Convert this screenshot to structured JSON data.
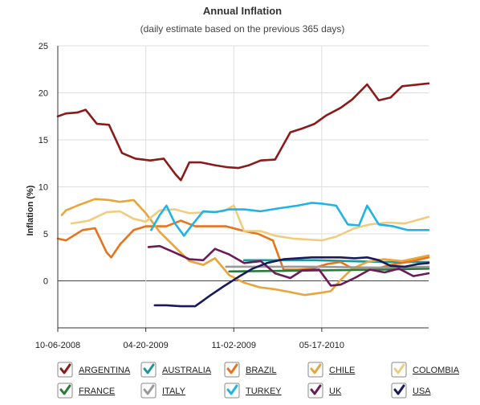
{
  "chart_data": {
    "type": "line",
    "title": "Annual Inflation",
    "subtitle": "(daily estimate based on the previous 365 days)",
    "xlabel": "",
    "ylabel": "Inflation (%)",
    "xlim": [
      "2008-10-06",
      "2011-01-10"
    ],
    "ylim": [
      -5,
      25
    ],
    "yticks": [
      0,
      5,
      10,
      15,
      20,
      25
    ],
    "xticks": [
      {
        "date": "2008-10-06",
        "label": "10-06-2008"
      },
      {
        "date": "2009-04-20",
        "label": "04-20-2009"
      },
      {
        "date": "2009-11-02",
        "label": "11-02-2009"
      },
      {
        "date": "2010-05-17",
        "label": "05-17-2010"
      }
    ],
    "grid": true,
    "legend_position": "bottom",
    "series": [
      {
        "name": "ARGENTINA",
        "color": "#8b1a1a",
        "points": [
          [
            "2008-10-06",
            17.5
          ],
          [
            "2008-10-24",
            17.8
          ],
          [
            "2008-11-18",
            17.9
          ],
          [
            "2008-12-07",
            18.2
          ],
          [
            "2009-01-01",
            16.7
          ],
          [
            "2009-01-28",
            16.6
          ],
          [
            "2009-02-26",
            13.6
          ],
          [
            "2009-03-28",
            13.0
          ],
          [
            "2009-04-30",
            12.8
          ],
          [
            "2009-05-30",
            13.0
          ],
          [
            "2009-06-24",
            11.4
          ],
          [
            "2009-07-07",
            10.7
          ],
          [
            "2009-07-26",
            12.6
          ],
          [
            "2009-08-21",
            12.6
          ],
          [
            "2009-09-21",
            12.3
          ],
          [
            "2009-10-16",
            12.1
          ],
          [
            "2009-11-12",
            12.0
          ],
          [
            "2009-12-06",
            12.3
          ],
          [
            "2010-01-01",
            12.8
          ],
          [
            "2010-02-02",
            12.9
          ],
          [
            "2010-03-08",
            15.8
          ],
          [
            "2010-04-03",
            16.2
          ],
          [
            "2010-05-01",
            16.7
          ],
          [
            "2010-05-27",
            17.6
          ],
          [
            "2010-06-28",
            18.4
          ],
          [
            "2010-07-24",
            19.3
          ],
          [
            "2010-08-26",
            20.9
          ],
          [
            "2010-09-21",
            19.2
          ],
          [
            "2010-10-17",
            19.5
          ],
          [
            "2010-11-12",
            20.7
          ],
          [
            "2011-01-10",
            21.0
          ]
        ]
      },
      {
        "name": "AUSTRALIA",
        "color": "#1a9a9a",
        "points": [
          [
            "2009-11-25",
            2.2
          ],
          [
            "2010-05-01",
            2.2
          ],
          [
            "2010-10-01",
            2.0
          ],
          [
            "2011-01-10",
            2.0
          ]
        ]
      },
      {
        "name": "BRAZIL",
        "color": "#e8731a",
        "points": [
          [
            "2008-10-06",
            4.5
          ],
          [
            "2008-10-24",
            4.3
          ],
          [
            "2008-11-30",
            5.4
          ],
          [
            "2008-12-28",
            5.6
          ],
          [
            "2009-01-23",
            3.0
          ],
          [
            "2009-02-02",
            2.5
          ],
          [
            "2009-02-22",
            3.9
          ],
          [
            "2009-03-24",
            5.4
          ],
          [
            "2009-04-20",
            5.8
          ],
          [
            "2009-06-05",
            5.8
          ],
          [
            "2009-07-07",
            6.4
          ],
          [
            "2009-08-08",
            5.8
          ],
          [
            "2009-10-16",
            5.8
          ],
          [
            "2009-11-25",
            5.3
          ],
          [
            "2009-12-26",
            5.0
          ],
          [
            "2010-01-28",
            4.3
          ],
          [
            "2010-02-21",
            1.2
          ],
          [
            "2010-03-24",
            1.2
          ],
          [
            "2010-04-25",
            1.3
          ],
          [
            "2010-05-30",
            1.8
          ],
          [
            "2010-06-28",
            2.0
          ],
          [
            "2010-07-29",
            1.2
          ],
          [
            "2010-09-09",
            1.2
          ],
          [
            "2010-10-17",
            1.7
          ],
          [
            "2010-11-24",
            2.0
          ],
          [
            "2011-01-10",
            2.5
          ]
        ]
      },
      {
        "name": "CHILE",
        "color": "#e9a53a",
        "points": [
          [
            "2008-10-15",
            7.0
          ],
          [
            "2008-10-24",
            7.5
          ],
          [
            "2008-11-24",
            8.1
          ],
          [
            "2008-12-28",
            8.7
          ],
          [
            "2009-01-28",
            8.6
          ],
          [
            "2009-02-21",
            8.4
          ],
          [
            "2009-03-24",
            8.6
          ],
          [
            "2009-04-20",
            7.2
          ],
          [
            "2009-05-21",
            5.2
          ],
          [
            "2009-06-24",
            3.6
          ],
          [
            "2009-07-26",
            2.1
          ],
          [
            "2009-08-26",
            1.7
          ],
          [
            "2009-09-21",
            2.4
          ],
          [
            "2009-10-23",
            0.6
          ],
          [
            "2009-11-25",
            -0.2
          ],
          [
            "2009-12-31",
            -0.7
          ],
          [
            "2010-02-02",
            -0.9
          ],
          [
            "2010-03-08",
            -1.2
          ],
          [
            "2010-04-09",
            -1.5
          ],
          [
            "2010-05-11",
            -1.3
          ],
          [
            "2010-06-06",
            -1.1
          ],
          [
            "2010-06-28",
            0.1
          ],
          [
            "2010-07-24",
            1.3
          ],
          [
            "2010-08-26",
            2.0
          ],
          [
            "2010-10-01",
            2.3
          ],
          [
            "2010-11-12",
            2.1
          ],
          [
            "2011-01-10",
            2.7
          ]
        ]
      },
      {
        "name": "COLOMBIA",
        "color": "#f0cd7e",
        "points": [
          [
            "2008-11-05",
            6.1
          ],
          [
            "2008-12-14",
            6.4
          ],
          [
            "2009-01-23",
            7.3
          ],
          [
            "2009-02-21",
            7.4
          ],
          [
            "2009-03-24",
            6.6
          ],
          [
            "2009-04-20",
            6.3
          ],
          [
            "2009-05-21",
            7.5
          ],
          [
            "2009-06-24",
            7.6
          ],
          [
            "2009-07-26",
            7.2
          ],
          [
            "2009-09-04",
            7.3
          ],
          [
            "2009-10-10",
            7.4
          ],
          [
            "2009-11-02",
            8.0
          ],
          [
            "2009-11-25",
            5.3
          ],
          [
            "2009-12-31",
            5.3
          ],
          [
            "2010-02-02",
            4.8
          ],
          [
            "2010-03-14",
            4.5
          ],
          [
            "2010-04-15",
            4.4
          ],
          [
            "2010-05-17",
            4.3
          ],
          [
            "2010-06-18",
            4.7
          ],
          [
            "2010-07-29",
            5.6
          ],
          [
            "2010-09-01",
            6.0
          ],
          [
            "2010-10-10",
            6.2
          ],
          [
            "2010-11-18",
            6.1
          ],
          [
            "2011-01-10",
            6.8
          ]
        ]
      },
      {
        "name": "FRANCE",
        "color": "#2a7a3a",
        "points": [
          [
            "2009-10-23",
            1.0
          ],
          [
            "2010-05-01",
            1.1
          ],
          [
            "2010-10-01",
            1.2
          ],
          [
            "2011-01-10",
            1.3
          ]
        ]
      },
      {
        "name": "ITALY",
        "color": "#999999",
        "points": [
          [
            "2009-10-16",
            1.5
          ],
          [
            "2010-04-21",
            1.5
          ],
          [
            "2010-10-01",
            1.4
          ],
          [
            "2011-01-10",
            1.5
          ]
        ]
      },
      {
        "name": "TURKEY",
        "color": "#1fb3e8",
        "points": [
          [
            "2009-05-02",
            5.4
          ],
          [
            "2009-05-21",
            7.0
          ],
          [
            "2009-06-05",
            8.0
          ],
          [
            "2009-06-24",
            6.1
          ],
          [
            "2009-07-14",
            4.8
          ],
          [
            "2009-08-02",
            6.0
          ],
          [
            "2009-08-26",
            7.4
          ],
          [
            "2009-09-21",
            7.3
          ],
          [
            "2009-10-23",
            7.6
          ],
          [
            "2009-11-25",
            7.6
          ],
          [
            "2010-01-01",
            7.4
          ],
          [
            "2010-02-09",
            7.7
          ],
          [
            "2010-03-24",
            8.0
          ],
          [
            "2010-04-25",
            8.3
          ],
          [
            "2010-05-20",
            8.2
          ],
          [
            "2010-06-18",
            8.0
          ],
          [
            "2010-07-14",
            6.0
          ],
          [
            "2010-08-08",
            5.9
          ],
          [
            "2010-08-26",
            8.0
          ],
          [
            "2010-09-21",
            6.0
          ],
          [
            "2010-10-23",
            5.8
          ],
          [
            "2010-11-24",
            5.4
          ],
          [
            "2011-01-10",
            5.4
          ]
        ]
      },
      {
        "name": "UK",
        "color": "#6b1a5a",
        "points": [
          [
            "2009-04-26",
            3.6
          ],
          [
            "2009-05-21",
            3.7
          ],
          [
            "2009-06-24",
            3.0
          ],
          [
            "2009-07-26",
            2.3
          ],
          [
            "2009-08-26",
            2.2
          ],
          [
            "2009-09-21",
            3.4
          ],
          [
            "2009-10-23",
            2.8
          ],
          [
            "2009-11-25",
            1.9
          ],
          [
            "2010-01-01",
            2.1
          ],
          [
            "2010-02-02",
            0.8
          ],
          [
            "2010-03-08",
            0.3
          ],
          [
            "2010-04-03",
            1.1
          ],
          [
            "2010-05-11",
            1.2
          ],
          [
            "2010-06-06",
            -0.5
          ],
          [
            "2010-06-28",
            -0.4
          ],
          [
            "2010-07-29",
            0.3
          ],
          [
            "2010-09-01",
            1.2
          ],
          [
            "2010-10-04",
            0.9
          ],
          [
            "2010-11-05",
            1.3
          ],
          [
            "2010-12-07",
            0.5
          ],
          [
            "2011-01-10",
            0.8
          ]
        ]
      },
      {
        "name": "USA",
        "color": "#1a1a5a",
        "points": [
          [
            "2009-05-10",
            -2.6
          ],
          [
            "2009-06-05",
            -2.6
          ],
          [
            "2009-07-07",
            -2.7
          ],
          [
            "2009-08-08",
            -2.7
          ],
          [
            "2009-09-09",
            -1.6
          ],
          [
            "2009-10-10",
            -0.6
          ],
          [
            "2009-11-12",
            0.4
          ],
          [
            "2009-12-14",
            1.3
          ],
          [
            "2010-01-15",
            1.9
          ],
          [
            "2010-02-21",
            2.3
          ],
          [
            "2010-03-24",
            2.4
          ],
          [
            "2010-04-25",
            2.5
          ],
          [
            "2010-05-27",
            2.5
          ],
          [
            "2010-06-28",
            2.5
          ],
          [
            "2010-07-29",
            2.4
          ],
          [
            "2010-08-26",
            2.5
          ],
          [
            "2010-09-21",
            2.2
          ],
          [
            "2010-10-17",
            1.6
          ],
          [
            "2010-11-18",
            1.5
          ],
          [
            "2010-12-20",
            1.8
          ],
          [
            "2011-01-10",
            1.9
          ]
        ]
      }
    ]
  }
}
